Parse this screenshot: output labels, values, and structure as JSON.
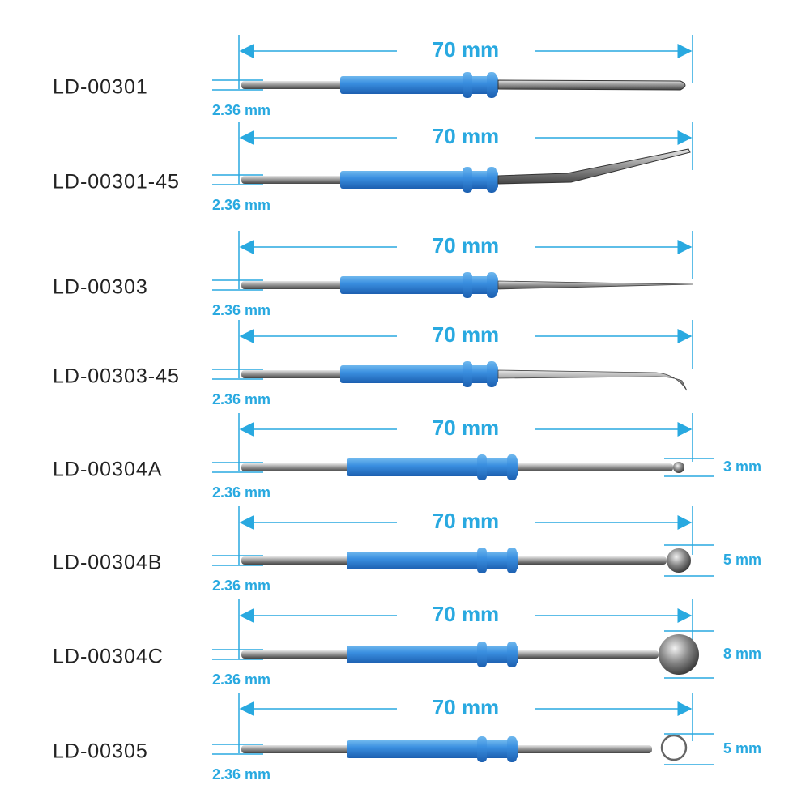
{
  "items": [
    {
      "model": "LD-00301",
      "length": "70 mm",
      "diameter": "2.36 mm"
    },
    {
      "model": "LD-00301-45",
      "length": "70 mm",
      "diameter": "2.36 mm"
    },
    {
      "model": "LD-00303",
      "length": "70 mm",
      "diameter": "2.36 mm"
    },
    {
      "model": "LD-00303-45",
      "length": "70 mm",
      "diameter": "2.36 mm"
    },
    {
      "model": "LD-00304A",
      "length": "70 mm",
      "diameter": "2.36 mm",
      "tip": "3 mm"
    },
    {
      "model": "LD-00304B",
      "length": "70 mm",
      "diameter": "2.36 mm",
      "tip": "5 mm"
    },
    {
      "model": "LD-00304C",
      "length": "70 mm",
      "diameter": "2.36 mm",
      "tip": "8 mm"
    },
    {
      "model": "LD-00305",
      "length": "70 mm",
      "diameter": "2.36 mm",
      "tip": "5 mm"
    }
  ]
}
